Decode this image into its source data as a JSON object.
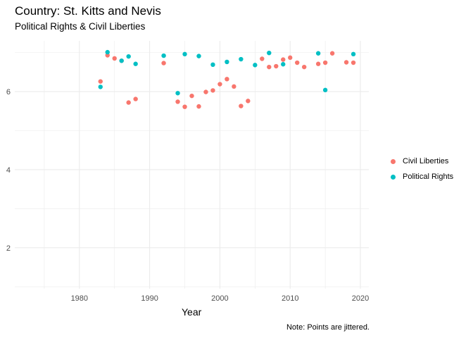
{
  "chart_data": {
    "type": "scatter",
    "title": "Country: St. Kitts and Nevis",
    "subtitle": "Political Rights & Civil Liberties",
    "xlabel": "Year",
    "ylabel": "",
    "caption": "Note: Points are jittered.",
    "xlim": [
      1970.8,
      2021.2
    ],
    "ylim": [
      0.95,
      7.3
    ],
    "x_ticks": [
      1980,
      1990,
      2000,
      2010,
      2020
    ],
    "y_ticks": [
      2,
      4,
      6
    ],
    "grid": true,
    "legend_position": "right",
    "series": [
      {
        "name": "Civil Liberties",
        "color": "#F8766D",
        "points": [
          [
            1983,
            6.26
          ],
          [
            1984,
            6.93
          ],
          [
            1985,
            6.85
          ],
          [
            1986,
            6.79
          ],
          [
            1987,
            5.72
          ],
          [
            1988,
            5.81
          ],
          [
            1992,
            6.73
          ],
          [
            1994,
            5.74
          ],
          [
            1995,
            5.61
          ],
          [
            1996,
            5.89
          ],
          [
            1997,
            5.62
          ],
          [
            1998,
            5.99
          ],
          [
            1999,
            6.03
          ],
          [
            2000,
            6.19
          ],
          [
            2001,
            6.32
          ],
          [
            2002,
            6.13
          ],
          [
            2003,
            5.63
          ],
          [
            2004,
            5.76
          ],
          [
            2006,
            6.84
          ],
          [
            2007,
            6.63
          ],
          [
            2008,
            6.65
          ],
          [
            2009,
            6.82
          ],
          [
            2010,
            6.87
          ],
          [
            2011,
            6.74
          ],
          [
            2012,
            6.63
          ],
          [
            2014,
            6.71
          ],
          [
            2015,
            6.74
          ],
          [
            2016,
            6.98
          ],
          [
            2018,
            6.75
          ],
          [
            2019,
            6.74
          ]
        ]
      },
      {
        "name": "Political Rights",
        "color": "#00BFC4",
        "points": [
          [
            1983,
            6.12
          ],
          [
            1984,
            7.01
          ],
          [
            1986,
            6.79
          ],
          [
            1987,
            6.9
          ],
          [
            1988,
            6.71
          ],
          [
            1992,
            6.92
          ],
          [
            1994,
            5.96
          ],
          [
            1995,
            6.96
          ],
          [
            1997,
            6.91
          ],
          [
            1999,
            6.69
          ],
          [
            2001,
            6.76
          ],
          [
            2003,
            6.83
          ],
          [
            2005,
            6.68
          ],
          [
            2007,
            6.99
          ],
          [
            2009,
            6.7
          ],
          [
            2014,
            6.98
          ],
          [
            2015,
            6.04
          ],
          [
            2019,
            6.96
          ]
        ]
      }
    ]
  }
}
